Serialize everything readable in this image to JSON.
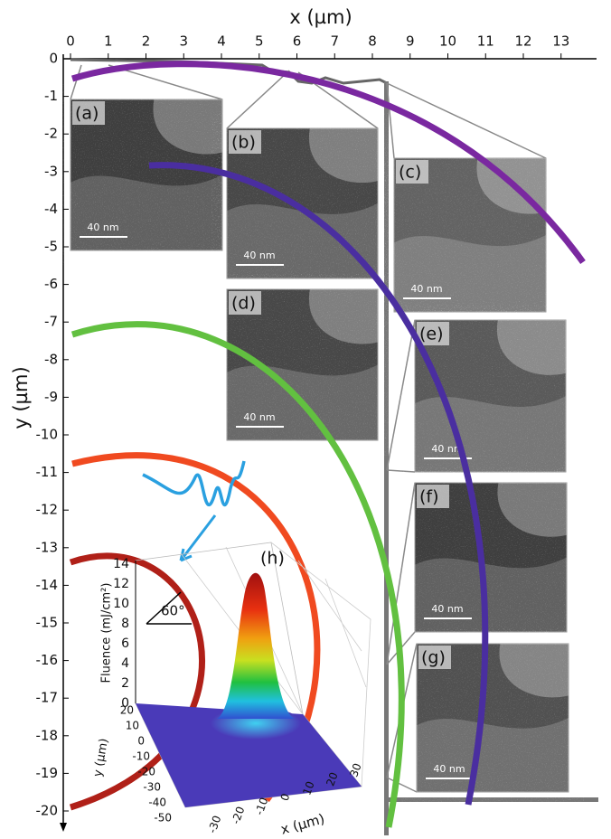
{
  "figure": {
    "x_axis": {
      "label": "x (µm)",
      "ticks": [
        0,
        1,
        2,
        3,
        4,
        5,
        6,
        7,
        8,
        9,
        10,
        11,
        12,
        13
      ]
    },
    "y_axis": {
      "label": "y (µm)",
      "ticks": [
        0,
        -1,
        -2,
        -3,
        -4,
        -5,
        -6,
        -7,
        -8,
        -9,
        -10,
        -11,
        -12,
        -13,
        -14,
        -15,
        -16,
        -17,
        -18,
        -19,
        -20
      ]
    },
    "panels": [
      {
        "label": "(a)",
        "scale_bar": "40 nm"
      },
      {
        "label": "(b)",
        "scale_bar": "40 nm"
      },
      {
        "label": "(c)",
        "scale_bar": "40 nm"
      },
      {
        "label": "(d)",
        "scale_bar": "40 nm"
      },
      {
        "label": "(e)",
        "scale_bar": "40 nm"
      },
      {
        "label": "(f)",
        "scale_bar": "40 nm"
      },
      {
        "label": "(g)",
        "scale_bar": "40 nm"
      }
    ],
    "inset": {
      "label": "(h)",
      "z_label": "Fluence (mJ/cm²)",
      "z_ticks": [
        0,
        2,
        4,
        6,
        8,
        10,
        12,
        14
      ],
      "y_label": "y (µm)",
      "y_ticks": [
        20,
        10,
        0,
        -10,
        -20,
        -30,
        -40,
        -50
      ],
      "x_label": "x (µm)",
      "x_ticks": [
        -30,
        -20,
        -10,
        0,
        10,
        20,
        30
      ],
      "angle_label": "60°"
    }
  }
}
